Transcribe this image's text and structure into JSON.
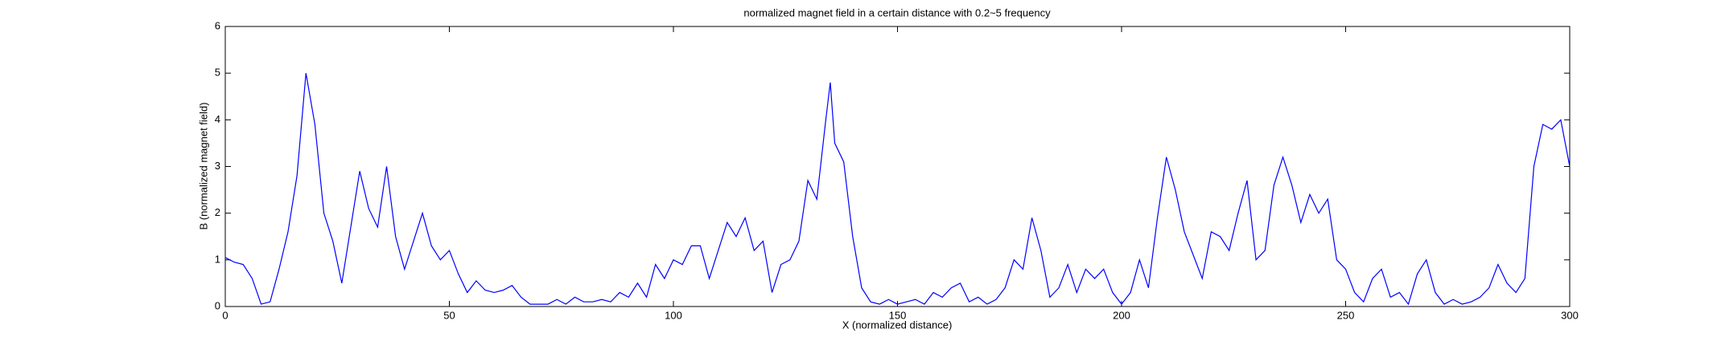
{
  "chart_data": {
    "type": "line",
    "title": "normalized magnet field in a certain distance with 0.2~5 frequency",
    "x_label": "X (normalized distance)",
    "y_label": "B (normalized magnet field)",
    "xlim": [
      0,
      300
    ],
    "xticks": [
      0,
      50,
      100,
      150,
      200,
      250,
      300
    ],
    "ylim": [
      0,
      6
    ],
    "yticks": [
      0,
      1,
      2,
      3,
      4,
      5,
      6
    ],
    "series": [
      {
        "color": "#0000ff",
        "x": [
          0,
          2,
          4,
          6,
          8,
          10,
          12,
          14,
          16,
          18,
          20,
          22,
          24,
          26,
          28,
          30,
          32,
          34,
          36,
          38,
          40,
          42,
          44,
          46,
          48,
          50,
          52,
          54,
          56,
          58,
          60,
          62,
          64,
          66,
          68,
          70,
          72,
          74,
          76,
          78,
          80,
          82,
          84,
          86,
          88,
          90,
          92,
          94,
          96,
          98,
          100,
          102,
          104,
          106,
          108,
          110,
          112,
          114,
          116,
          118,
          120,
          122,
          124,
          126,
          128,
          130,
          132,
          134,
          135,
          136,
          138,
          140,
          142,
          144,
          146,
          148,
          150,
          152,
          154,
          156,
          158,
          160,
          162,
          164,
          166,
          168,
          170,
          172,
          174,
          176,
          178,
          180,
          182,
          184,
          186,
          188,
          190,
          192,
          194,
          196,
          198,
          200,
          202,
          204,
          206,
          208,
          210,
          212,
          214,
          216,
          218,
          220,
          222,
          224,
          226,
          228,
          230,
          232,
          234,
          236,
          238,
          240,
          242,
          244,
          246,
          248,
          250,
          252,
          254,
          256,
          258,
          260,
          262,
          264,
          266,
          268,
          270,
          272,
          274,
          276,
          278,
          280,
          282,
          284,
          286,
          288,
          290,
          292,
          294,
          296,
          298,
          300
        ],
        "values": [
          1.05,
          0.95,
          0.9,
          0.6,
          0.05,
          0.1,
          0.8,
          1.6,
          2.8,
          5.0,
          3.9,
          2.0,
          1.4,
          0.5,
          1.7,
          2.9,
          2.1,
          1.7,
          3.0,
          1.5,
          0.8,
          1.4,
          2.0,
          1.3,
          1.0,
          1.2,
          0.7,
          0.3,
          0.55,
          0.35,
          0.3,
          0.35,
          0.45,
          0.2,
          0.05,
          0.05,
          0.05,
          0.15,
          0.05,
          0.2,
          0.1,
          0.1,
          0.15,
          0.1,
          0.3,
          0.2,
          0.5,
          0.2,
          0.9,
          0.6,
          1.0,
          0.9,
          1.3,
          1.3,
          0.6,
          1.2,
          1.8,
          1.5,
          1.9,
          1.2,
          1.4,
          0.3,
          0.9,
          1.0,
          1.4,
          2.7,
          2.3,
          4.0,
          4.8,
          3.5,
          3.1,
          1.5,
          0.4,
          0.1,
          0.05,
          0.15,
          0.05,
          0.1,
          0.15,
          0.05,
          0.3,
          0.2,
          0.4,
          0.5,
          0.1,
          0.2,
          0.05,
          0.15,
          0.4,
          1.0,
          0.8,
          1.9,
          1.2,
          0.2,
          0.4,
          0.9,
          0.3,
          0.8,
          0.6,
          0.8,
          0.3,
          0.05,
          0.3,
          1.0,
          0.4,
          1.9,
          3.2,
          2.5,
          1.6,
          1.1,
          0.6,
          1.6,
          1.5,
          1.2,
          2.0,
          2.7,
          1.0,
          1.2,
          2.6,
          3.2,
          2.6,
          1.8,
          2.4,
          2.0,
          2.3,
          1.0,
          0.8,
          0.3,
          0.1,
          0.6,
          0.8,
          0.2,
          0.3,
          0.05,
          0.7,
          1.0,
          0.3,
          0.05,
          0.15,
          0.05,
          0.1,
          0.2,
          0.4,
          0.9,
          0.5,
          0.3,
          0.6,
          3.0,
          3.9,
          3.8,
          4.0,
          3.0
        ]
      }
    ]
  }
}
